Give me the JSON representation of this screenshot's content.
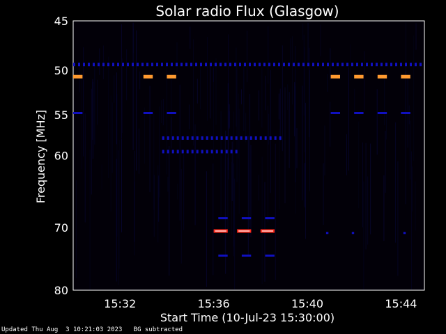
{
  "footer": {
    "updated": "Updated Thu Aug  3 10:21:03 2023",
    "note": "BG subtracted"
  },
  "chart_data": {
    "type": "heatmap",
    "title": "Solar radio Flux (Glasgow)",
    "xlabel": "Start Time (10-Jul-23 15:30:00)",
    "ylabel": "Frequency [MHz]",
    "x_unit": "minutes after 15:30",
    "xlim": [
      0,
      15
    ],
    "ylim": [
      45,
      80
    ],
    "y_scale": "log",
    "x_ticks": [
      {
        "value": 2,
        "label": "15:32"
      },
      {
        "value": 6,
        "label": "15:36"
      },
      {
        "value": 10,
        "label": "15:40"
      },
      {
        "value": 14,
        "label": "15:44"
      }
    ],
    "y_ticks": [
      {
        "value": 45,
        "label": "45"
      },
      {
        "value": 50,
        "label": "50"
      },
      {
        "value": 55,
        "label": "55"
      },
      {
        "value": 60,
        "label": "60"
      },
      {
        "value": 70,
        "label": "70"
      },
      {
        "value": 80,
        "label": "80"
      }
    ],
    "colors": {
      "background": "#000000",
      "plot_bg": "#020008",
      "low": "#1010c0",
      "mid": "#ff9a30",
      "high": "#ff2a1a"
    },
    "bands": [
      {
        "freq": 49.4,
        "t0": 0.0,
        "t1": 15.0,
        "level": "low",
        "pattern": "dashed"
      },
      {
        "freq": 50.7,
        "t0": 0.0,
        "t1": 0.4,
        "level": "mid"
      },
      {
        "freq": 50.7,
        "t0": 3.0,
        "t1": 3.4,
        "level": "mid"
      },
      {
        "freq": 50.7,
        "t0": 4.0,
        "t1": 4.4,
        "level": "mid"
      },
      {
        "freq": 50.7,
        "t0": 11.0,
        "t1": 11.4,
        "level": "mid"
      },
      {
        "freq": 50.7,
        "t0": 12.0,
        "t1": 12.4,
        "level": "mid"
      },
      {
        "freq": 50.7,
        "t0": 13.0,
        "t1": 13.4,
        "level": "mid"
      },
      {
        "freq": 50.7,
        "t0": 14.0,
        "t1": 14.4,
        "level": "mid"
      },
      {
        "freq": 54.8,
        "t0": 0.0,
        "t1": 0.4,
        "level": "low"
      },
      {
        "freq": 54.8,
        "t0": 3.0,
        "t1": 3.4,
        "level": "low"
      },
      {
        "freq": 54.8,
        "t0": 4.0,
        "t1": 4.4,
        "level": "low"
      },
      {
        "freq": 54.8,
        "t0": 11.0,
        "t1": 11.4,
        "level": "low"
      },
      {
        "freq": 54.8,
        "t0": 12.0,
        "t1": 12.4,
        "level": "low"
      },
      {
        "freq": 54.8,
        "t0": 13.0,
        "t1": 13.4,
        "level": "low"
      },
      {
        "freq": 54.8,
        "t0": 14.0,
        "t1": 14.4,
        "level": "low"
      },
      {
        "freq": 57.8,
        "t0": 3.8,
        "t1": 8.8,
        "level": "low",
        "pattern": "dashed"
      },
      {
        "freq": 59.5,
        "t0": 3.8,
        "t1": 7.0,
        "level": "low",
        "pattern": "dashed"
      },
      {
        "freq": 68.6,
        "t0": 6.2,
        "t1": 6.6,
        "level": "low"
      },
      {
        "freq": 68.6,
        "t0": 7.2,
        "t1": 7.6,
        "level": "low"
      },
      {
        "freq": 68.6,
        "t0": 8.2,
        "t1": 8.6,
        "level": "low"
      },
      {
        "freq": 70.5,
        "t0": 6.0,
        "t1": 6.6,
        "level": "high"
      },
      {
        "freq": 70.5,
        "t0": 7.0,
        "t1": 7.6,
        "level": "high"
      },
      {
        "freq": 70.5,
        "t0": 8.0,
        "t1": 8.6,
        "level": "high"
      },
      {
        "freq": 74.3,
        "t0": 6.2,
        "t1": 6.6,
        "level": "low"
      },
      {
        "freq": 74.3,
        "t0": 7.2,
        "t1": 7.6,
        "level": "low"
      },
      {
        "freq": 74.3,
        "t0": 8.2,
        "t1": 8.6,
        "level": "low"
      },
      {
        "freq": 70.8,
        "t0": 10.8,
        "t1": 10.9,
        "level": "low"
      },
      {
        "freq": 70.8,
        "t0": 11.9,
        "t1": 12.0,
        "level": "low"
      },
      {
        "freq": 70.8,
        "t0": 14.1,
        "t1": 14.2,
        "level": "low"
      }
    ]
  }
}
